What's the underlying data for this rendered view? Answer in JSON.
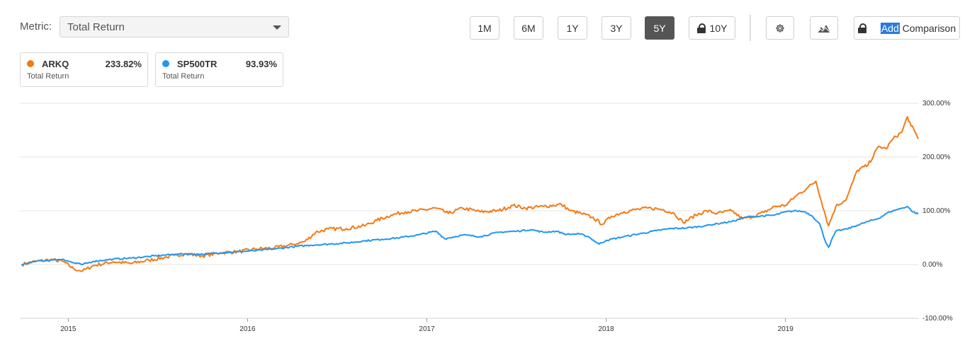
{
  "toolbar": {
    "metric_label": "Metric:",
    "metric_value": "Total Return",
    "ranges": [
      {
        "label": "1M",
        "active": false,
        "locked": false
      },
      {
        "label": "6M",
        "active": false,
        "locked": false
      },
      {
        "label": "1Y",
        "active": false,
        "locked": false
      },
      {
        "label": "3Y",
        "active": false,
        "locked": false
      },
      {
        "label": "5Y",
        "active": true,
        "locked": false
      },
      {
        "label": "10Y",
        "active": false,
        "locked": true
      }
    ],
    "settings_icon": "gear-icon",
    "chart_type_icon": "mountain-chart-icon",
    "add_selected": "Add",
    "add_rest": " Comparison"
  },
  "legend": [
    {
      "name": "ARKQ",
      "value": "233.82%",
      "sub": "Total Return",
      "color": "#f47a13"
    },
    {
      "name": "SP500TR",
      "value": "93.93%",
      "sub": "Total Return",
      "color": "#2196f3"
    }
  ],
  "chart_data": {
    "type": "line",
    "title": "",
    "xlabel": "",
    "ylabel": "",
    "x_ticks": [
      "2015",
      "2016",
      "2017",
      "2018",
      "2019"
    ],
    "x_range": [
      2014.73,
      2019.74
    ],
    "y_ticks": [
      "300.00%",
      "200.00%",
      "100.00%",
      "0.00%",
      "-100.00%"
    ],
    "ylim": [
      -100,
      300
    ],
    "grid": true,
    "series": [
      {
        "name": "ARKQ",
        "color": "#f47a13",
        "points": [
          [
            2014.74,
            0
          ],
          [
            2014.82,
            6
          ],
          [
            2014.9,
            9
          ],
          [
            2014.97,
            6
          ],
          [
            2015.03,
            -8
          ],
          [
            2015.08,
            -12
          ],
          [
            2015.14,
            -2
          ],
          [
            2015.25,
            5
          ],
          [
            2015.35,
            2
          ],
          [
            2015.45,
            8
          ],
          [
            2015.55,
            14
          ],
          [
            2015.65,
            20
          ],
          [
            2015.75,
            16
          ],
          [
            2015.85,
            22
          ],
          [
            2015.95,
            24
          ],
          [
            2016.05,
            29
          ],
          [
            2016.15,
            31
          ],
          [
            2016.25,
            37
          ],
          [
            2016.32,
            43
          ],
          [
            2016.38,
            60
          ],
          [
            2016.45,
            66
          ],
          [
            2016.55,
            67
          ],
          [
            2016.65,
            72
          ],
          [
            2016.72,
            82
          ],
          [
            2016.8,
            92
          ],
          [
            2016.88,
            98
          ],
          [
            2016.95,
            100
          ],
          [
            2017.05,
            105
          ],
          [
            2017.12,
            95
          ],
          [
            2017.2,
            105
          ],
          [
            2017.3,
            98
          ],
          [
            2017.4,
            100
          ],
          [
            2017.48,
            110
          ],
          [
            2017.55,
            105
          ],
          [
            2017.65,
            108
          ],
          [
            2017.75,
            112
          ],
          [
            2017.8,
            100
          ],
          [
            2017.86,
            95
          ],
          [
            2017.92,
            88
          ],
          [
            2017.98,
            75
          ],
          [
            2018.03,
            90
          ],
          [
            2018.1,
            98
          ],
          [
            2018.18,
            103
          ],
          [
            2018.25,
            105
          ],
          [
            2018.32,
            102
          ],
          [
            2018.38,
            95
          ],
          [
            2018.43,
            78
          ],
          [
            2018.5,
            92
          ],
          [
            2018.56,
            100
          ],
          [
            2018.62,
            95
          ],
          [
            2018.7,
            100
          ],
          [
            2018.76,
            85
          ],
          [
            2018.82,
            90
          ],
          [
            2018.88,
            97
          ],
          [
            2018.94,
            108
          ],
          [
            2019.0,
            110
          ],
          [
            2019.06,
            128
          ],
          [
            2019.12,
            142
          ],
          [
            2019.17,
            155
          ],
          [
            2019.2,
            118
          ],
          [
            2019.24,
            72
          ],
          [
            2019.28,
            108
          ],
          [
            2019.34,
            122
          ],
          [
            2019.4,
            175
          ],
          [
            2019.46,
            185
          ],
          [
            2019.52,
            220
          ],
          [
            2019.56,
            215
          ],
          [
            2019.6,
            234
          ],
          [
            2019.65,
            247
          ],
          [
            2019.68,
            275
          ],
          [
            2019.7,
            258
          ],
          [
            2019.72,
            248
          ],
          [
            2019.74,
            234
          ]
        ]
      },
      {
        "name": "SP500TR",
        "color": "#2196f3",
        "points": [
          [
            2014.74,
            0
          ],
          [
            2014.82,
            6
          ],
          [
            2014.9,
            8
          ],
          [
            2014.97,
            10
          ],
          [
            2015.03,
            3
          ],
          [
            2015.08,
            0
          ],
          [
            2015.14,
            6
          ],
          [
            2015.25,
            10
          ],
          [
            2015.35,
            12
          ],
          [
            2015.45,
            15
          ],
          [
            2015.55,
            18
          ],
          [
            2015.65,
            20
          ],
          [
            2015.75,
            19
          ],
          [
            2015.85,
            22
          ],
          [
            2015.95,
            24
          ],
          [
            2016.05,
            26
          ],
          [
            2016.15,
            29
          ],
          [
            2016.25,
            33
          ],
          [
            2016.35,
            36
          ],
          [
            2016.45,
            38
          ],
          [
            2016.55,
            40
          ],
          [
            2016.65,
            44
          ],
          [
            2016.75,
            47
          ],
          [
            2016.85,
            50
          ],
          [
            2016.95,
            55
          ],
          [
            2017.05,
            62
          ],
          [
            2017.1,
            48
          ],
          [
            2017.2,
            55
          ],
          [
            2017.3,
            52
          ],
          [
            2017.4,
            60
          ],
          [
            2017.5,
            62
          ],
          [
            2017.58,
            65
          ],
          [
            2017.65,
            60
          ],
          [
            2017.72,
            62
          ],
          [
            2017.78,
            56
          ],
          [
            2017.85,
            57
          ],
          [
            2017.9,
            52
          ],
          [
            2017.96,
            38
          ],
          [
            2018.0,
            45
          ],
          [
            2018.1,
            52
          ],
          [
            2018.2,
            58
          ],
          [
            2018.28,
            63
          ],
          [
            2018.36,
            67
          ],
          [
            2018.45,
            68
          ],
          [
            2018.55,
            72
          ],
          [
            2018.62,
            76
          ],
          [
            2018.7,
            80
          ],
          [
            2018.78,
            88
          ],
          [
            2018.86,
            90
          ],
          [
            2018.94,
            92
          ],
          [
            2019.0,
            98
          ],
          [
            2019.06,
            100
          ],
          [
            2019.11,
            98
          ],
          [
            2019.15,
            90
          ],
          [
            2019.19,
            76
          ],
          [
            2019.22,
            45
          ],
          [
            2019.24,
            32
          ],
          [
            2019.28,
            62
          ],
          [
            2019.34,
            66
          ],
          [
            2019.4,
            73
          ],
          [
            2019.46,
            80
          ],
          [
            2019.52,
            86
          ],
          [
            2019.58,
            98
          ],
          [
            2019.64,
            104
          ],
          [
            2019.68,
            108
          ],
          [
            2019.71,
            98
          ],
          [
            2019.74,
            94
          ]
        ]
      }
    ]
  }
}
